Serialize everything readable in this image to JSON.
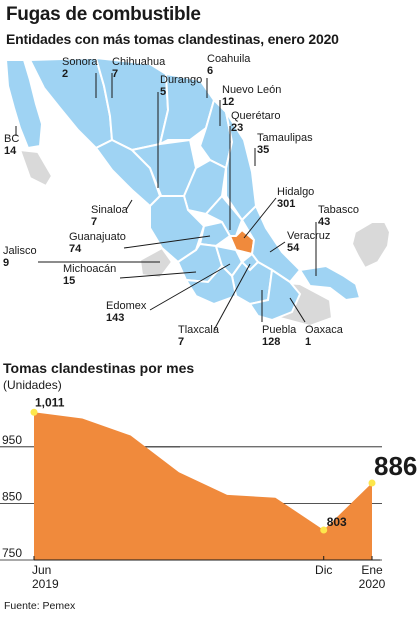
{
  "title": "Fugas de combustible",
  "subtitle": "Entidades con más tomas clandestinas, enero 2020",
  "line_title": "Tomas clandestinas por mes",
  "line_units": "(Unidades)",
  "source": "Fuente: Pemex",
  "colors": {
    "state_fill": "#9fd3f3",
    "highlight": "#f08a3c",
    "gray": "#d9d9d9",
    "line_fill": "#f08a3c"
  },
  "chart_data": [
    {
      "type": "map",
      "entries": [
        {
          "state": "Sonora",
          "value": 2
        },
        {
          "state": "Chihuahua",
          "value": 7
        },
        {
          "state": "Coahuila",
          "value": 6
        },
        {
          "state": "Durango",
          "value": 5
        },
        {
          "state": "Nuevo León",
          "value": 12
        },
        {
          "state": "Querétaro",
          "value": 23
        },
        {
          "state": "BC",
          "value": 14
        },
        {
          "state": "Tamaulipas",
          "value": 35
        },
        {
          "state": "Hidalgo",
          "value": 301
        },
        {
          "state": "Sinaloa",
          "value": 7
        },
        {
          "state": "Tabasco",
          "value": 43
        },
        {
          "state": "Guanajuato",
          "value": 74
        },
        {
          "state": "Veracruz",
          "value": 54
        },
        {
          "state": "Jalisco",
          "value": 9
        },
        {
          "state": "Michoacán",
          "value": 15
        },
        {
          "state": "Edomex",
          "value": 143
        },
        {
          "state": "Tlaxcala",
          "value": 7
        },
        {
          "state": "Puebla",
          "value": 128
        },
        {
          "state": "Oaxaca",
          "value": 1
        }
      ]
    },
    {
      "type": "area",
      "title": "Tomas clandestinas por mes",
      "ylabel": "(Unidades)",
      "ylim": [
        750,
        1015
      ],
      "yticks": [
        750,
        850,
        950
      ],
      "x_tick_labels": [
        [
          "Jun",
          "2019"
        ],
        [
          "Dic",
          ""
        ],
        [
          "Ene",
          "2020"
        ]
      ],
      "values": [
        1011,
        1000,
        970,
        905,
        865,
        860,
        803,
        886
      ],
      "annotations": [
        {
          "label": "1,011",
          "value": 1011,
          "index": 0
        },
        {
          "label": "803",
          "value": 803,
          "index": 6
        },
        {
          "label": "886",
          "value": 886,
          "index": 7
        }
      ]
    }
  ]
}
